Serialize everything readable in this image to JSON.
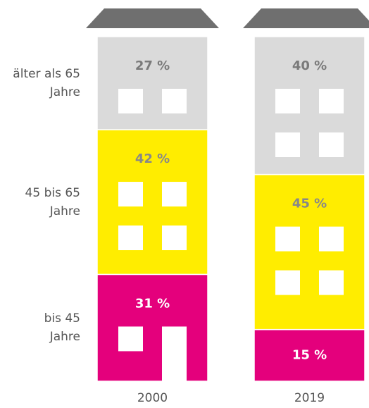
{
  "chart_data": {
    "type": "stacked-bar",
    "categories": [
      "2000",
      "2019"
    ],
    "series": [
      {
        "name": "bis 45 Jahre",
        "color": "#e4007c",
        "values": [
          31,
          15
        ],
        "value_labels": [
          "31 %",
          "15 %"
        ]
      },
      {
        "name": "45 bis 65 Jahre",
        "color": "#ffed00",
        "values": [
          42,
          45
        ],
        "value_labels": [
          "42 %",
          "45 %"
        ]
      },
      {
        "name": "älter als 65 Jahre",
        "color": "#dadada",
        "values": [
          27,
          40
        ],
        "value_labels": [
          "27 %",
          "40 %"
        ]
      }
    ]
  }
}
